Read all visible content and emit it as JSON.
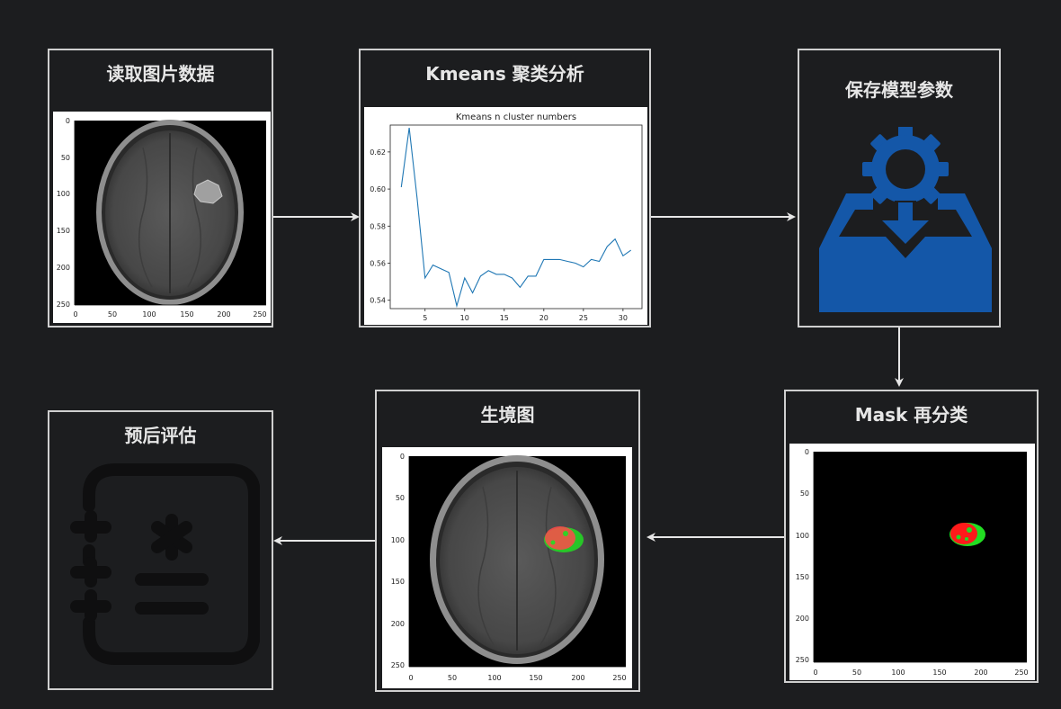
{
  "steps": {
    "read": {
      "title": "读取图片数据"
    },
    "kmeans": {
      "title": "Kmeans 聚类分析"
    },
    "save": {
      "title": "保存模型参数"
    },
    "mask": {
      "title": "Mask 再分类"
    },
    "overlay": {
      "title": "生境图"
    },
    "prognosis": {
      "title": "预后评估"
    }
  },
  "image_axes": {
    "x_ticks": [
      "0",
      "50",
      "100",
      "150",
      "200",
      "250"
    ],
    "y_ticks": [
      "0",
      "50",
      "100",
      "150",
      "200",
      "250"
    ]
  },
  "icons": {
    "save": "gear-inbox-download-icon",
    "prognosis": "medical-record-icon"
  },
  "colors": {
    "background": "#1c1d1f",
    "box_border": "#cfcfcf",
    "save_icon": "#1457a8",
    "line_series": "#1f77b4",
    "habitat_red": "#ff1a1a",
    "habitat_green": "#22dd22"
  },
  "chart_data": {
    "type": "line",
    "title": "Kmeans n cluster numbers",
    "xlabel": "",
    "ylabel": "",
    "x": [
      2,
      3,
      4,
      5,
      6,
      7,
      8,
      9,
      10,
      11,
      12,
      13,
      14,
      15,
      16,
      17,
      18,
      19,
      20,
      21,
      22,
      23,
      24,
      25,
      26,
      27,
      28,
      29,
      30,
      31
    ],
    "series": [
      {
        "values": [
          0.601,
          0.633,
          0.595,
          0.552,
          0.559,
          0.557,
          0.555,
          0.537,
          0.552,
          0.544,
          0.553,
          0.556,
          0.554,
          0.554,
          0.552,
          0.547,
          0.553,
          0.553,
          0.562,
          0.562,
          0.562,
          0.561,
          0.56,
          0.558,
          0.562,
          0.561,
          0.569,
          0.573,
          0.564,
          0.567
        ]
      }
    ],
    "xlim": [
      0.6,
      32.4
    ],
    "ylim": [
      0.5355,
      0.6345
    ],
    "x_ticks": [
      5,
      10,
      15,
      20,
      25,
      30
    ],
    "y_ticks": [
      0.54,
      0.56,
      0.58,
      0.6,
      0.62
    ],
    "y_tick_labels": [
      "0.54",
      "0.56",
      "0.58",
      "0.60",
      "0.62"
    ],
    "grid": false,
    "legend": "none"
  }
}
